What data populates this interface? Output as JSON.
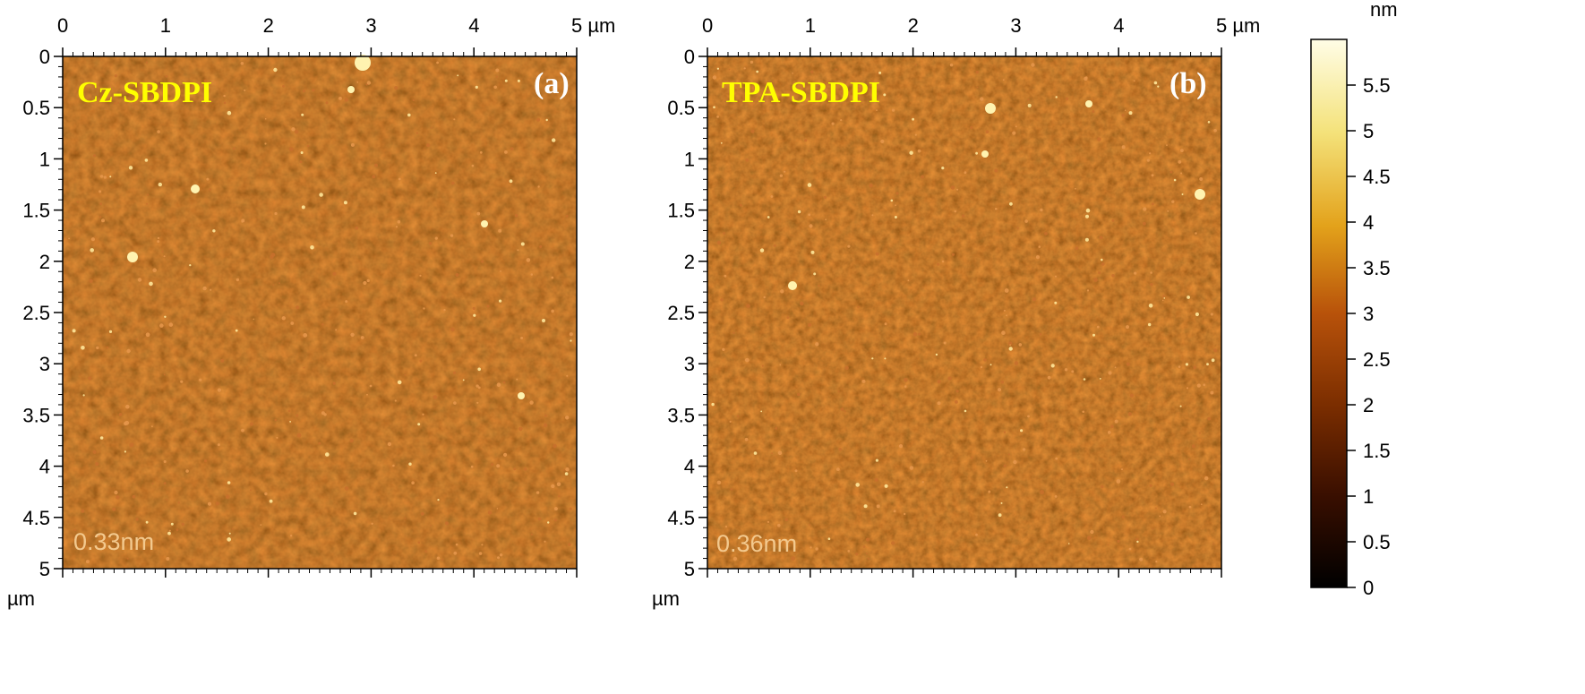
{
  "panels": [
    {
      "id": "a",
      "letter": "(a)",
      "sample": "Cz-SBDPI",
      "roughness": "0.33nm",
      "x_ticks": [
        "0",
        "1",
        "2",
        "3",
        "4",
        "5 µm"
      ],
      "y_ticks": [
        "0",
        "0.5",
        "1",
        "1.5",
        "2",
        "2.5",
        "3",
        "3.5",
        "4",
        "4.5",
        "5"
      ],
      "y_unit": "µm"
    },
    {
      "id": "b",
      "letter": "(b)",
      "sample": "TPA-SBDPI",
      "roughness": "0.36nm",
      "x_ticks": [
        "0",
        "1",
        "2",
        "3",
        "4",
        "5 µm"
      ],
      "y_ticks": [
        "0",
        "0.5",
        "1",
        "1.5",
        "2",
        "2.5",
        "3",
        "3.5",
        "4",
        "4.5",
        "5"
      ],
      "y_unit": "µm"
    }
  ],
  "colorbar": {
    "unit": "nm",
    "ticks": [
      "5.5",
      "5",
      "4.5",
      "4",
      "3.5",
      "3",
      "2.5",
      "2",
      "1.5",
      "1",
      "0.5",
      "0"
    ],
    "range": [
      0,
      6
    ],
    "colors": [
      "#000000",
      "#3a0f00",
      "#7a2d00",
      "#b8520a",
      "#e3a21b",
      "#f4e27a",
      "#fffde6"
    ]
  },
  "colors": {
    "surface_dark": "#4a1a00",
    "surface_mid": "#7a3310",
    "grain_bright": "#f3b35a",
    "grain_peak": "#fff3b0"
  }
}
